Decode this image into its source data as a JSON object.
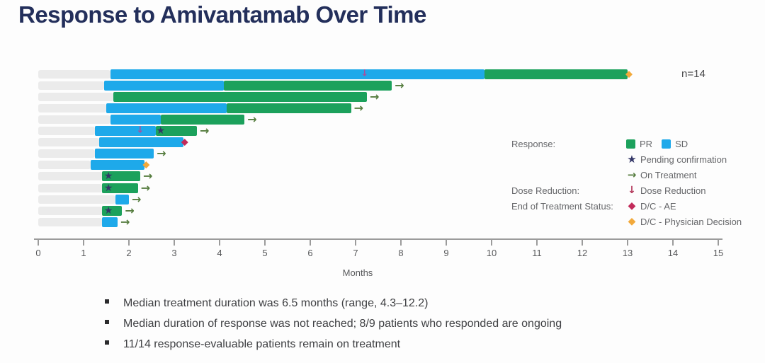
{
  "title": "Response to Amivantamab Over Time",
  "legend": {
    "group_labels": {
      "response": "Response:",
      "dose_reduction": "Dose Reduction:",
      "end_of_treatment": "End of Treatment Status:"
    },
    "items": {
      "pr": "PR",
      "sd": "SD",
      "pending": "Pending confirmation",
      "on_treatment": "On Treatment",
      "dose_reduction": "Dose Reduction",
      "dc_ae": "D/C - AE",
      "dc_physician": "D/C - Physician Decision"
    }
  },
  "bullets": [
    "Median treatment duration was 6.5 months (range, 4.3–12.2)",
    "Median duration of response was not reached; 8/9 patients who responded are ongoing",
    "11/14 response-evaluable patients remain on treatment"
  ],
  "chart_data": {
    "type": "swimmer_bar",
    "title": "Response to Amivantamab Over Time",
    "xlabel": "Months",
    "xlim": [
      0,
      15
    ],
    "x_ticks": [
      0,
      1,
      2,
      3,
      4,
      5,
      6,
      7,
      8,
      9,
      10,
      11,
      12,
      13,
      14,
      15
    ],
    "n": 14,
    "n_label": "n=14",
    "grid": false,
    "legend_position": "right",
    "units": "months",
    "colors": {
      "pr": "#1CA15C",
      "sd": "#1EA9EA",
      "track": "#EBEBEB",
      "pending_star": "#333667",
      "on_treatment_arrow": "#567D3F",
      "dose_reduction_legend": "#B23558",
      "dose_reduction_chart": "#A8509F",
      "dc_ae": "#C22B5A",
      "dc_physician": "#F2A93B",
      "title": "#232F5B",
      "axis_text": "#58595B",
      "legend_text": "#66676A",
      "bullet_text": "#3F4043"
    },
    "patients": [
      {
        "id": 1,
        "start": 1.6,
        "segments": [
          {
            "response": "SD",
            "from": 1.6,
            "to": 9.85
          },
          {
            "response": "PR",
            "from": 9.85,
            "to": 13.0
          }
        ],
        "dose_reduction_at": [
          7.2
        ],
        "pending_confirmation_at": null,
        "end_marker": "dc_physician"
      },
      {
        "id": 2,
        "start": 1.45,
        "segments": [
          {
            "response": "SD",
            "from": 1.45,
            "to": 4.1
          },
          {
            "response": "PR",
            "from": 4.1,
            "to": 7.8
          }
        ],
        "dose_reduction_at": [],
        "pending_confirmation_at": null,
        "end_marker": "on_treatment"
      },
      {
        "id": 3,
        "start": 1.65,
        "segments": [
          {
            "response": "PR",
            "from": 1.65,
            "to": 7.25
          }
        ],
        "dose_reduction_at": [],
        "pending_confirmation_at": null,
        "end_marker": "on_treatment"
      },
      {
        "id": 4,
        "start": 1.5,
        "segments": [
          {
            "response": "SD",
            "from": 1.5,
            "to": 4.15
          },
          {
            "response": "PR",
            "from": 4.15,
            "to": 6.9
          }
        ],
        "dose_reduction_at": [],
        "pending_confirmation_at": null,
        "end_marker": "on_treatment"
      },
      {
        "id": 5,
        "start": 1.6,
        "segments": [
          {
            "response": "SD",
            "from": 1.6,
            "to": 2.7
          },
          {
            "response": "PR",
            "from": 2.7,
            "to": 4.55
          }
        ],
        "dose_reduction_at": [],
        "pending_confirmation_at": null,
        "end_marker": "on_treatment"
      },
      {
        "id": 6,
        "start": 1.25,
        "segments": [
          {
            "response": "SD",
            "from": 1.25,
            "to": 2.6
          },
          {
            "response": "PR",
            "from": 2.6,
            "to": 3.5
          }
        ],
        "dose_reduction_at": [
          2.25
        ],
        "pending_confirmation_at": 2.7,
        "end_marker": "on_treatment"
      },
      {
        "id": 7,
        "start": 1.35,
        "segments": [
          {
            "response": "SD",
            "from": 1.35,
            "to": 3.2
          }
        ],
        "dose_reduction_at": [],
        "pending_confirmation_at": null,
        "end_marker": "dc_ae"
      },
      {
        "id": 8,
        "start": 1.25,
        "segments": [
          {
            "response": "SD",
            "from": 1.25,
            "to": 2.55
          }
        ],
        "dose_reduction_at": [],
        "pending_confirmation_at": null,
        "end_marker": "on_treatment"
      },
      {
        "id": 9,
        "start": 1.15,
        "segments": [
          {
            "response": "SD",
            "from": 1.15,
            "to": 2.35
          }
        ],
        "dose_reduction_at": [],
        "pending_confirmation_at": null,
        "end_marker": "dc_physician"
      },
      {
        "id": 10,
        "start": 1.4,
        "segments": [
          {
            "response": "PR",
            "from": 1.4,
            "to": 2.25
          }
        ],
        "dose_reduction_at": [],
        "pending_confirmation_at": 1.55,
        "end_marker": "on_treatment"
      },
      {
        "id": 11,
        "start": 1.4,
        "segments": [
          {
            "response": "PR",
            "from": 1.4,
            "to": 2.2
          }
        ],
        "dose_reduction_at": [],
        "pending_confirmation_at": 1.55,
        "end_marker": "on_treatment"
      },
      {
        "id": 12,
        "start": 1.7,
        "segments": [
          {
            "response": "SD",
            "from": 1.7,
            "to": 2.0
          }
        ],
        "dose_reduction_at": [],
        "pending_confirmation_at": null,
        "end_marker": "on_treatment"
      },
      {
        "id": 13,
        "start": 1.4,
        "segments": [
          {
            "response": "PR",
            "from": 1.4,
            "to": 1.85
          }
        ],
        "dose_reduction_at": [],
        "pending_confirmation_at": 1.55,
        "end_marker": "on_treatment"
      },
      {
        "id": 14,
        "start": 1.4,
        "segments": [
          {
            "response": "SD",
            "from": 1.4,
            "to": 1.75
          }
        ],
        "dose_reduction_at": [],
        "pending_confirmation_at": null,
        "end_marker": "on_treatment"
      }
    ]
  }
}
